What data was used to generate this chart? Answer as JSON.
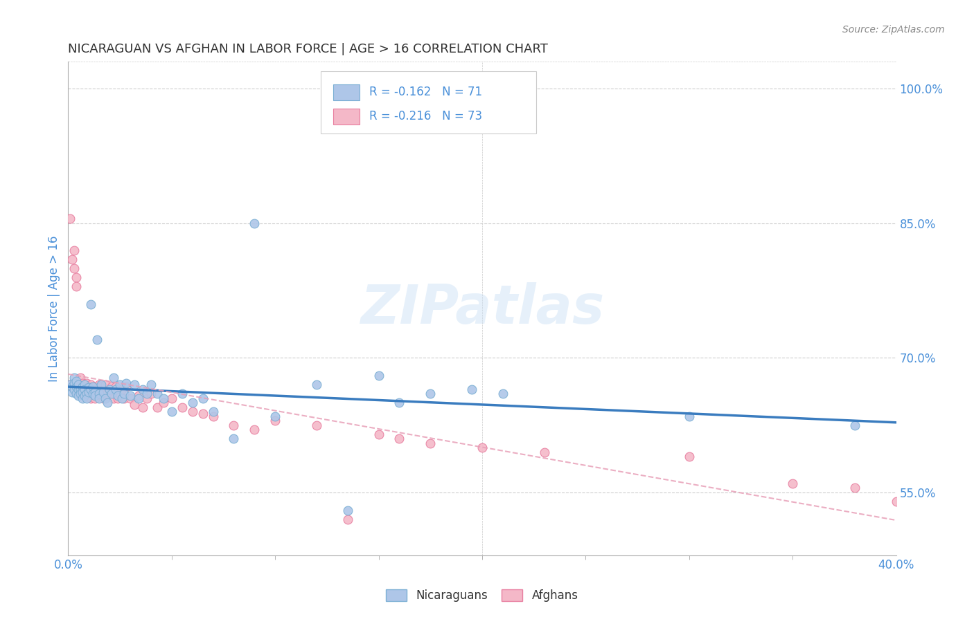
{
  "title": "NICARAGUAN VS AFGHAN IN LABOR FORCE | AGE > 16 CORRELATION CHART",
  "source": "Source: ZipAtlas.com",
  "ylabel": "In Labor Force | Age > 16",
  "xlim": [
    0.0,
    0.4
  ],
  "ylim": [
    0.48,
    1.03
  ],
  "yticks_right": [
    0.55,
    0.7,
    0.85,
    1.0
  ],
  "ytick_labels_right": [
    "55.0%",
    "70.0%",
    "85.0%",
    "100.0%"
  ],
  "xtick_left_label": "0.0%",
  "xtick_right_label": "40.0%",
  "xtick_left_val": 0.0,
  "xtick_right_val": 0.4,
  "xtick_minor": [
    0.05,
    0.1,
    0.15,
    0.2,
    0.25,
    0.3,
    0.35
  ],
  "watermark": "ZIPatlas",
  "nicaraguan_color": "#aec6e8",
  "afghan_color": "#f4b8c8",
  "nicaraguan_edge": "#7bafd4",
  "afghan_edge": "#e87fa0",
  "trend_nicaraguan_color": "#3a7cbf",
  "trend_afghan_color": "#e8a0b8",
  "R_nicaraguan": -0.162,
  "N_nicaraguan": 71,
  "R_afghan": -0.216,
  "N_afghan": 73,
  "nicaraguan_x": [
    0.001,
    0.002,
    0.002,
    0.003,
    0.003,
    0.003,
    0.004,
    0.004,
    0.004,
    0.005,
    0.005,
    0.005,
    0.006,
    0.006,
    0.007,
    0.007,
    0.007,
    0.008,
    0.008,
    0.008,
    0.009,
    0.009,
    0.01,
    0.01,
    0.011,
    0.011,
    0.012,
    0.012,
    0.013,
    0.013,
    0.014,
    0.015,
    0.015,
    0.016,
    0.017,
    0.018,
    0.019,
    0.02,
    0.021,
    0.022,
    0.023,
    0.024,
    0.025,
    0.026,
    0.027,
    0.028,
    0.03,
    0.032,
    0.034,
    0.036,
    0.038,
    0.04,
    0.043,
    0.046,
    0.05,
    0.055,
    0.06,
    0.065,
    0.07,
    0.08,
    0.09,
    0.1,
    0.12,
    0.135,
    0.15,
    0.16,
    0.175,
    0.195,
    0.21,
    0.3,
    0.38
  ],
  "nicaraguan_y": [
    0.67,
    0.662,
    0.668,
    0.678,
    0.672,
    0.665,
    0.668,
    0.66,
    0.674,
    0.665,
    0.67,
    0.658,
    0.665,
    0.66,
    0.668,
    0.662,
    0.655,
    0.67,
    0.665,
    0.658,
    0.66,
    0.655,
    0.667,
    0.662,
    0.76,
    0.665,
    0.668,
    0.66,
    0.662,
    0.658,
    0.72,
    0.66,
    0.655,
    0.67,
    0.662,
    0.655,
    0.65,
    0.665,
    0.66,
    0.678,
    0.665,
    0.658,
    0.67,
    0.655,
    0.66,
    0.672,
    0.658,
    0.67,
    0.655,
    0.665,
    0.66,
    0.67,
    0.66,
    0.655,
    0.64,
    0.66,
    0.65,
    0.655,
    0.64,
    0.61,
    0.85,
    0.635,
    0.67,
    0.53,
    0.68,
    0.65,
    0.66,
    0.665,
    0.66,
    0.635,
    0.625
  ],
  "afghan_x": [
    0.001,
    0.001,
    0.002,
    0.002,
    0.003,
    0.003,
    0.003,
    0.004,
    0.004,
    0.004,
    0.005,
    0.005,
    0.005,
    0.006,
    0.006,
    0.007,
    0.007,
    0.008,
    0.008,
    0.008,
    0.009,
    0.009,
    0.01,
    0.01,
    0.011,
    0.011,
    0.012,
    0.012,
    0.013,
    0.013,
    0.014,
    0.015,
    0.015,
    0.016,
    0.017,
    0.018,
    0.019,
    0.02,
    0.021,
    0.022,
    0.023,
    0.024,
    0.025,
    0.026,
    0.027,
    0.028,
    0.03,
    0.032,
    0.034,
    0.036,
    0.038,
    0.04,
    0.043,
    0.046,
    0.05,
    0.055,
    0.06,
    0.065,
    0.07,
    0.08,
    0.09,
    0.1,
    0.12,
    0.135,
    0.15,
    0.16,
    0.175,
    0.2,
    0.23,
    0.3,
    0.35,
    0.38,
    0.4
  ],
  "afghan_y": [
    0.855,
    0.67,
    0.668,
    0.81,
    0.82,
    0.668,
    0.8,
    0.79,
    0.668,
    0.78,
    0.67,
    0.668,
    0.66,
    0.678,
    0.665,
    0.672,
    0.66,
    0.67,
    0.665,
    0.658,
    0.672,
    0.66,
    0.668,
    0.658,
    0.67,
    0.655,
    0.665,
    0.66,
    0.668,
    0.655,
    0.662,
    0.67,
    0.66,
    0.668,
    0.655,
    0.67,
    0.66,
    0.665,
    0.668,
    0.655,
    0.668,
    0.655,
    0.66,
    0.665,
    0.655,
    0.668,
    0.655,
    0.648,
    0.658,
    0.645,
    0.655,
    0.66,
    0.645,
    0.65,
    0.655,
    0.645,
    0.64,
    0.638,
    0.635,
    0.625,
    0.62,
    0.63,
    0.625,
    0.52,
    0.615,
    0.61,
    0.605,
    0.6,
    0.595,
    0.59,
    0.56,
    0.555,
    0.54
  ],
  "background_color": "#ffffff",
  "grid_color": "#cccccc",
  "title_color": "#333333",
  "axis_label_color": "#4a90d9",
  "tick_color": "#4a90d9",
  "legend_box_color": "#ffffff",
  "legend_box_edge": "#cccccc"
}
